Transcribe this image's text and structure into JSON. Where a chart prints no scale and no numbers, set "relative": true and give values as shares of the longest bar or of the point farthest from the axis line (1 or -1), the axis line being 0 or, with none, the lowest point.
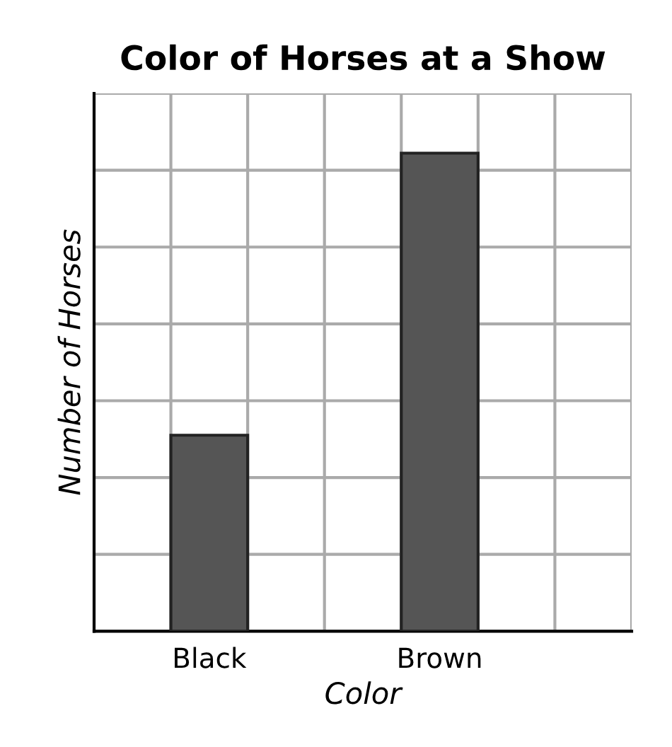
{
  "chart_data": {
    "type": "bar",
    "title": "Color of Horses at a Show",
    "xlabel": "Color",
    "ylabel": "Number of Horses",
    "categories": [
      "Black",
      "Brown"
    ],
    "values": [
      0.41,
      1
    ],
    "color": "#555555",
    "relative": true,
    "grid": true
  }
}
